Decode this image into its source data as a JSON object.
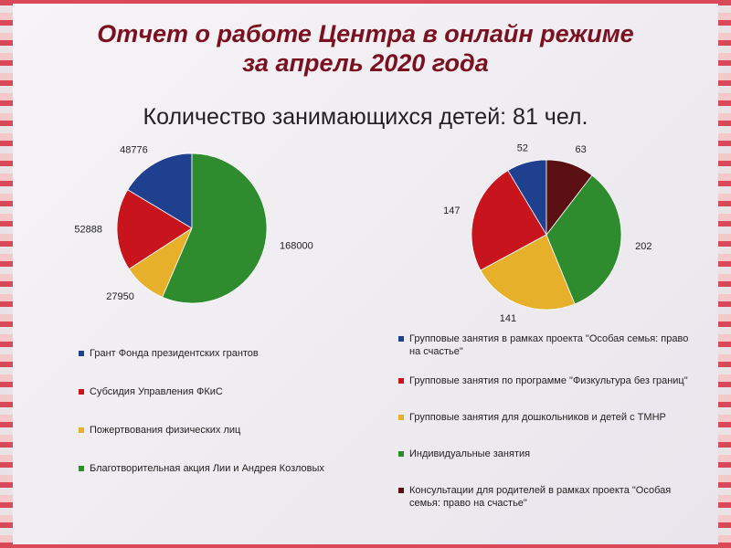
{
  "header": {
    "title_lines": [
      "Отчет о работе Центра в онлайн режиме",
      "за апрель 2020 года"
    ],
    "subtitle": "Количество занимающихся детей: 81 чел."
  },
  "chart_data": [
    {
      "type": "pie",
      "categories": [
        "Грант Фонда президентских грантов",
        "Субсидия Управления ФКиС",
        "Пожертвования физических лиц",
        "Благотворительная акция Лии и Андрея Козловых"
      ],
      "values": [
        48776,
        52888,
        27950,
        168000
      ],
      "colors": [
        "#1f3f8f",
        "#c8141c",
        "#e6b02a",
        "#2e8b2e"
      ]
    },
    {
      "type": "pie",
      "categories": [
        "Групповые занятия в рамках проекта \"Особая семья: право на счастье\"",
        "Групповые занятия по программе \"Физкультура без границ\"",
        "Групповые занятия для дошкольников и детей с ТМНР",
        "Индивидуальные занятия",
        "Консультации для родителей в рамках проекта \"Особая семья: право на счастье\""
      ],
      "values": [
        52,
        147,
        141,
        202,
        63
      ],
      "colors": [
        "#1f3f8f",
        "#c8141c",
        "#e6b02a",
        "#2e8b2e",
        "#5a0f12"
      ]
    }
  ]
}
